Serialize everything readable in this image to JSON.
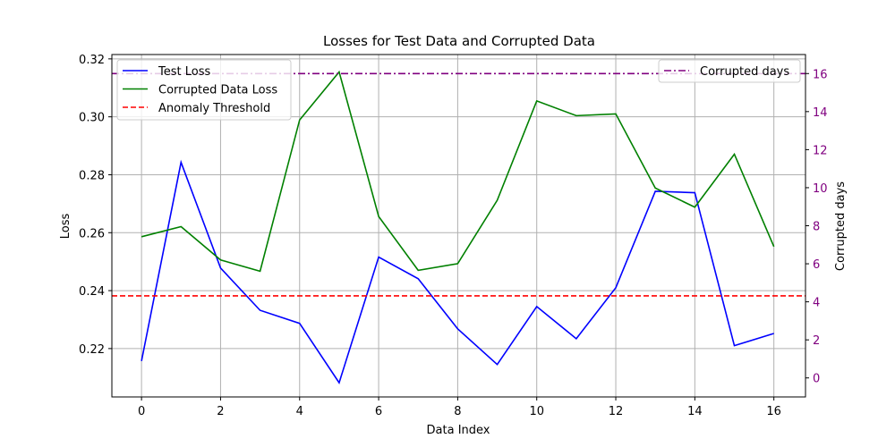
{
  "chart_data": {
    "type": "line",
    "title": "Losses for Test Data and Corrupted Data",
    "xlabel": "Data Index",
    "ylabel": "Loss",
    "ylabel_right": "Corrupted days",
    "xlim": [
      -0.75,
      16.8
    ],
    "ylim": [
      0.2033,
      0.3215
    ],
    "ylim_right": [
      -1,
      17
    ],
    "x": [
      0,
      1,
      2,
      3,
      4,
      5,
      6,
      7,
      8,
      9,
      10,
      11,
      12,
      13,
      14,
      15,
      16
    ],
    "x_ticks": [
      0,
      2,
      4,
      6,
      8,
      10,
      12,
      14,
      16
    ],
    "x_tick_labels": [
      "0",
      "2",
      "4",
      "6",
      "8",
      "10",
      "12",
      "14",
      "16"
    ],
    "y_ticks": [
      0.22,
      0.24,
      0.26,
      0.28,
      0.3,
      0.32
    ],
    "y_tick_labels": [
      "0.22",
      "0.24",
      "0.26",
      "0.28",
      "0.30",
      "0.32"
    ],
    "y_right_ticks": [
      0,
      2,
      4,
      6,
      8,
      10,
      12,
      14,
      16
    ],
    "y_right_tick_labels": [
      "0",
      "2",
      "4",
      "6",
      "8",
      "10",
      "12",
      "14",
      "16"
    ],
    "grid": true,
    "series": [
      {
        "name": "Test Loss",
        "color": "#0000ff",
        "style": "solid",
        "axis": "left",
        "values": [
          0.2157,
          0.2843,
          0.2478,
          0.2332,
          0.2287,
          0.2082,
          0.2516,
          0.2441,
          0.2268,
          0.2145,
          0.2345,
          0.2234,
          0.241,
          0.2743,
          0.2738,
          0.221,
          0.2252
        ]
      },
      {
        "name": "Corrupted Data Loss",
        "color": "#008000",
        "style": "solid",
        "axis": "left",
        "values": [
          0.2586,
          0.2621,
          0.2506,
          0.2467,
          0.2989,
          0.3155,
          0.2656,
          0.247,
          0.2493,
          0.2712,
          0.3055,
          0.3004,
          0.301,
          0.2754,
          0.2688,
          0.2871,
          0.2552
        ]
      },
      {
        "name": "Anomaly Threshold",
        "color": "#ff0000",
        "style": "dashed",
        "axis": "left",
        "hline": 0.2382
      },
      {
        "name": "Corrupted days",
        "color": "#800080",
        "style": "dashdot",
        "axis": "right",
        "hline": 16
      }
    ],
    "legend_left": [
      "Test Loss",
      "Corrupted Data Loss",
      "Anomaly Threshold"
    ],
    "legend_left_placement": "top-left",
    "legend_right": [
      "Corrupted days"
    ],
    "legend_right_placement": "top-right",
    "right_axis_color": "#800080"
  }
}
